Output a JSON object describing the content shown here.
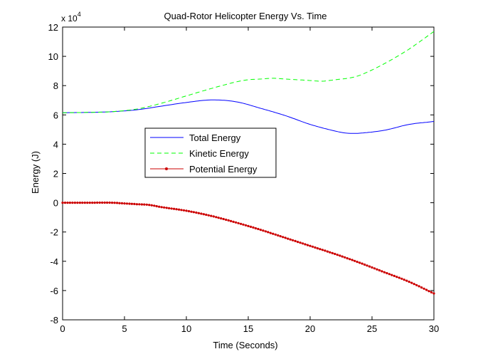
{
  "chart_data": {
    "type": "line",
    "title": "Quad-Rotor Helicopter Energy Vs. Time",
    "xlabel": "Time (Seconds)",
    "ylabel": "Energy (J)",
    "y_exponent_base": "x 10",
    "y_exponent_power": "4",
    "xlim": [
      0,
      30
    ],
    "ylim": [
      -8,
      12
    ],
    "x_ticks": [
      0,
      5,
      10,
      15,
      20,
      25,
      30
    ],
    "y_ticks": [
      -8,
      -6,
      -4,
      -2,
      0,
      2,
      4,
      6,
      8,
      10,
      12
    ],
    "grid": false,
    "legend_position": "center-left",
    "series": [
      {
        "name": "Total Energy",
        "color": "#0000ff",
        "style": "solid",
        "x": [
          0,
          2,
          4,
          6,
          8,
          10,
          12,
          14,
          16,
          18,
          20,
          22,
          23,
          24,
          26,
          28,
          30
        ],
        "y": [
          6.15,
          6.17,
          6.22,
          6.35,
          6.6,
          6.85,
          7.02,
          6.9,
          6.45,
          5.95,
          5.35,
          4.9,
          4.75,
          4.75,
          4.95,
          5.35,
          5.55
        ]
      },
      {
        "name": "Kinetic Energy",
        "color": "#00ff00",
        "style": "dashed",
        "x": [
          0,
          2,
          4,
          6,
          8,
          10,
          12,
          14,
          15,
          16,
          17,
          18,
          19,
          20,
          21,
          22,
          23,
          24,
          26,
          28,
          30
        ],
        "y": [
          6.15,
          6.17,
          6.22,
          6.4,
          6.8,
          7.3,
          7.8,
          8.25,
          8.4,
          8.45,
          8.5,
          8.45,
          8.4,
          8.35,
          8.3,
          8.4,
          8.5,
          8.7,
          9.5,
          10.5,
          11.7
        ]
      },
      {
        "name": "Potential Energy",
        "color": "#cc0000",
        "style": "solid-markers",
        "x": [
          0,
          2,
          4,
          5,
          6,
          7,
          8,
          10,
          12,
          14,
          16,
          18,
          20,
          22,
          24,
          26,
          28,
          30
        ],
        "y": [
          0,
          0,
          0,
          -0.05,
          -0.1,
          -0.15,
          -0.3,
          -0.55,
          -0.9,
          -1.35,
          -1.85,
          -2.4,
          -2.95,
          -3.5,
          -4.1,
          -4.75,
          -5.4,
          -6.2
        ]
      }
    ]
  }
}
